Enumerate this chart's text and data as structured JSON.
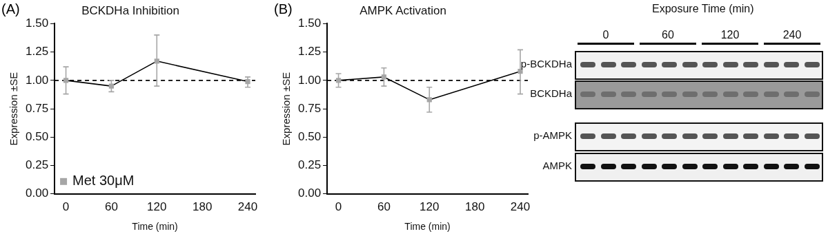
{
  "chart_data": [
    {
      "type": "line",
      "title": "BCKDHa Inhibition",
      "xlabel": "Time (min)",
      "ylabel": "Expression ±SE",
      "annotations": [
        "(A)"
      ],
      "x": [
        0,
        60,
        120,
        240
      ],
      "xlim": [
        -15,
        250
      ],
      "xticks": [
        0,
        60,
        120,
        180,
        240
      ],
      "ylim": [
        0,
        1.5
      ],
      "yticks": [
        {
          "value": 0,
          "label": "0.00"
        },
        {
          "value": 0.25,
          "label": "0.25"
        },
        {
          "value": 0.5,
          "label": "0.50"
        },
        {
          "value": 0.75,
          "label": "0.75"
        },
        {
          "value": 1,
          "label": "1.00"
        },
        {
          "value": 1.25,
          "label": "1.25"
        },
        {
          "value": 1.5,
          "label": "1.50"
        }
      ],
      "series": [
        {
          "name": "Met 30μM",
          "color": "#a6a6a6",
          "values": [
            1.0,
            0.95,
            1.17,
            0.99
          ],
          "errors": [
            [
              0.88,
              1.12
            ],
            [
              0.9,
              1.0
            ],
            [
              0.95,
              1.4
            ],
            [
              0.94,
              1.03
            ]
          ]
        }
      ],
      "ref_lines": [
        {
          "axis": "y",
          "value": 1,
          "line_style": "dashed",
          "color": "#000000"
        }
      ],
      "legend": "bottom left",
      "marker": "square",
      "grid": false
    },
    {
      "type": "line",
      "title": "AMPK Activation",
      "xlabel": "Time (min)",
      "ylabel": "Expression ±SE",
      "annotations": [
        "(B)"
      ],
      "x": [
        0,
        60,
        120,
        240
      ],
      "xlim": [
        -15,
        250
      ],
      "xticks": [
        0,
        60,
        120,
        180,
        240
      ],
      "ylim": [
        0,
        1.5
      ],
      "yticks": [
        {
          "value": 0,
          "label": "0.00"
        },
        {
          "value": 0.25,
          "label": "0.25"
        },
        {
          "value": 0.5,
          "label": "0.50"
        },
        {
          "value": 0.75,
          "label": "0.75"
        },
        {
          "value": 1,
          "label": "1.00"
        },
        {
          "value": 1.25,
          "label": "1.25"
        },
        {
          "value": 1.5,
          "label": "1.50"
        }
      ],
      "series": [
        {
          "color": "#a6a6a6",
          "values": [
            1.0,
            1.03,
            0.83,
            1.08
          ],
          "errors": [
            [
              0.94,
              1.06
            ],
            [
              0.95,
              1.11
            ],
            [
              0.72,
              0.94
            ],
            [
              0.88,
              1.27
            ]
          ]
        }
      ],
      "ref_lines": [
        {
          "axis": "y",
          "value": 1,
          "line_style": "dashed",
          "color": "#000000"
        }
      ],
      "marker": "square",
      "grid": false
    },
    {
      "type": "other",
      "title": "Exposure Time (min)",
      "annotations": [
        "0",
        "60",
        "120",
        "240",
        "p-BCKDHa",
        "BCKDHa",
        "p-AMPK",
        "AMPK"
      ]
    }
  ]
}
